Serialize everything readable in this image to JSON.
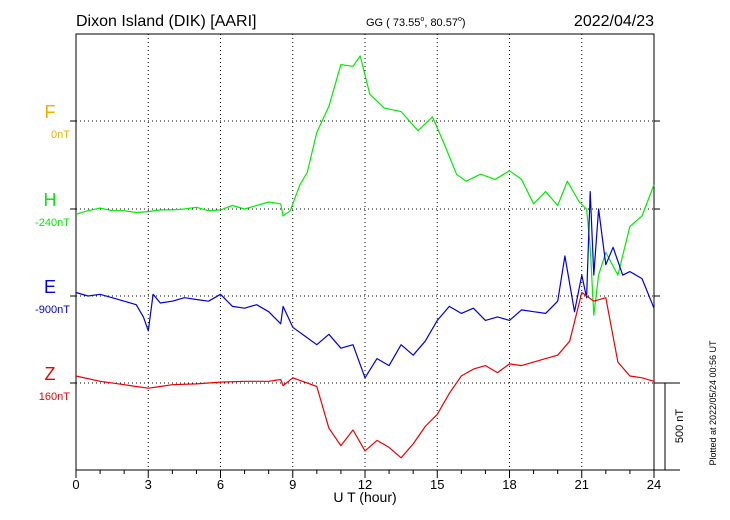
{
  "header": {
    "station": "Dixon Island (DIK)  [AARI]",
    "coords_prefix": "GG ( 73.55",
    "coords_mid": ",  80.57",
    "coords_suffix": ")",
    "degree_mark": "o",
    "date": "2022/04/23"
  },
  "footer": {
    "plotted_note": "Plotted at 2022/05/24 00:56 UT",
    "scale_label": "500 nT"
  },
  "colors": {
    "F": "#f0b000",
    "H": "#00ee00",
    "E": "#0000dd",
    "Z": "#ee0000"
  },
  "chart_data": {
    "type": "line",
    "title": "Dixon Island (DIK)  [AARI]",
    "xlabel": "U T (hour)",
    "ylabel": "",
    "xlim": [
      0,
      24
    ],
    "x_ticks": [
      "0",
      "3",
      "6",
      "9",
      "12",
      "15",
      "18",
      "21",
      "24"
    ],
    "grid": true,
    "scale_bar_nT": 500,
    "channels": [
      {
        "name": "F",
        "baseline": "0nT",
        "values": []
      },
      {
        "name": "H",
        "baseline": "-240nT",
        "x": [
          0,
          0.5,
          1,
          1.5,
          2,
          2.5,
          3,
          3.5,
          4,
          4.5,
          5,
          5.5,
          6,
          6.5,
          7,
          7.5,
          8,
          8.5,
          8.6,
          8.9,
          9.3,
          9.6,
          10,
          10.5,
          11,
          11.5,
          11.8,
          12.2,
          12.8,
          13.5,
          14.2,
          14.8,
          15.3,
          15.8,
          16.2,
          16.8,
          17.4,
          18,
          18.5,
          19,
          19.5,
          20,
          20.4,
          20.9,
          21.2,
          21.35,
          21.5,
          21.7,
          22,
          22.5,
          23,
          23.5,
          24
        ],
        "values": [
          -270,
          -250,
          -235,
          -250,
          -250,
          -260,
          -255,
          -245,
          -245,
          -240,
          -230,
          -250,
          -245,
          -220,
          -240,
          -220,
          -200,
          -210,
          -280,
          -250,
          -100,
          -30,
          200,
          350,
          590,
          580,
          640,
          420,
          340,
          320,
          210,
          290,
          130,
          -40,
          -80,
          -40,
          -70,
          -20,
          -70,
          -210,
          -140,
          -220,
          -80,
          -200,
          -240,
          -460,
          -850,
          -620,
          -490,
          -620,
          -340,
          -280,
          -100
        ]
      },
      {
        "name": "E",
        "baseline": "-900nT",
        "x": [
          0,
          0.5,
          1,
          1.5,
          2,
          2.5,
          2.8,
          3,
          3.2,
          3.5,
          4,
          4.5,
          5,
          5.5,
          6,
          6.5,
          7,
          7.5,
          8,
          8.5,
          8.6,
          9,
          9.5,
          10,
          10.5,
          11,
          11.5,
          12,
          12.5,
          13,
          13.5,
          14,
          14.5,
          15,
          15.5,
          16,
          16.5,
          17,
          17.5,
          18,
          18.5,
          19,
          19.5,
          20,
          20.3,
          20.7,
          21,
          21.2,
          21.35,
          21.5,
          21.7,
          22,
          22.3,
          22.7,
          23,
          23.5,
          24
        ],
        "values": [
          -880,
          -900,
          -890,
          -910,
          -930,
          -950,
          -1020,
          -1100,
          -890,
          -940,
          -930,
          -910,
          -920,
          -930,
          -890,
          -960,
          -970,
          -950,
          -990,
          -1060,
          -960,
          -1080,
          -1130,
          -1180,
          -1120,
          -1200,
          -1180,
          -1370,
          -1260,
          -1300,
          -1180,
          -1240,
          -1160,
          -1040,
          -960,
          -1000,
          -970,
          -1040,
          -1020,
          -1040,
          -980,
          -990,
          -1000,
          -930,
          -670,
          -990,
          -780,
          -910,
          -300,
          -780,
          -400,
          -720,
          -620,
          -780,
          -760,
          -800,
          -970
        ]
      },
      {
        "name": "Z",
        "baseline": "160nT",
        "x": [
          0,
          1,
          2,
          2.5,
          3,
          3.5,
          4,
          5,
          6,
          7,
          8,
          8.5,
          8.6,
          9,
          10,
          10.5,
          11,
          11.5,
          12,
          12.5,
          13,
          13.5,
          14,
          14.5,
          15,
          15.5,
          16,
          16.5,
          17,
          17.5,
          18,
          18.5,
          19,
          19.5,
          20,
          20.5,
          21,
          21.5,
          22,
          22.5,
          23,
          23.5,
          24
        ],
        "values": [
          200,
          170,
          150,
          140,
          130,
          140,
          150,
          155,
          165,
          170,
          170,
          180,
          145,
          190,
          140,
          -100,
          -200,
          -110,
          -230,
          -170,
          -210,
          -270,
          -190,
          -90,
          -20,
          100,
          200,
          240,
          260,
          220,
          270,
          260,
          280,
          300,
          320,
          400,
          680,
          630,
          650,
          280,
          200,
          190,
          170
        ]
      }
    ]
  }
}
